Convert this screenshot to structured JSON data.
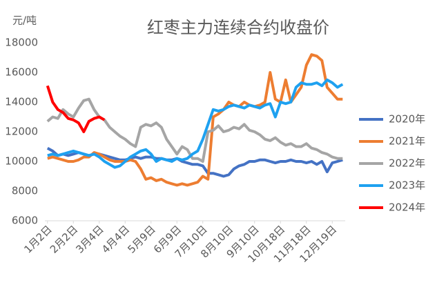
{
  "chart_data": {
    "type": "line",
    "title": "红枣主力连续合约收盘价",
    "y_label": "元/吨",
    "categories": [
      "1月2日",
      null,
      null,
      null,
      null,
      "2月2日",
      null,
      null,
      null,
      null,
      "3月4日",
      null,
      null,
      null,
      null,
      "4月4日",
      null,
      null,
      null,
      null,
      "5月9日",
      null,
      null,
      null,
      null,
      "6月9日",
      null,
      null,
      null,
      null,
      "7月10日",
      null,
      null,
      null,
      null,
      "8月10日",
      null,
      null,
      null,
      null,
      "9月10日",
      null,
      null,
      null,
      null,
      "10月18日",
      null,
      null,
      null,
      null,
      "11月18日",
      null,
      null,
      null,
      null,
      "12月19日",
      null,
      null
    ],
    "series": [
      {
        "name": "2020年",
        "color": "#4472c4",
        "values": [
          10900,
          10700,
          10400,
          10500,
          10400,
          10500,
          10600,
          10500,
          10400,
          10500,
          10500,
          10400,
          10300,
          10200,
          10100,
          10100,
          10200,
          10300,
          10200,
          10300,
          10300,
          10200,
          10200,
          10100,
          10100,
          10200,
          10000,
          9900,
          9800,
          9800,
          9700,
          9200,
          9200,
          9100,
          9000,
          9100,
          9500,
          9700,
          9800,
          10000,
          10000,
          10100,
          10100,
          10000,
          9900,
          10000,
          10000,
          10100,
          10000,
          10000,
          9900,
          10000,
          9800,
          10000,
          9300,
          9900,
          10000,
          10100
        ]
      },
      {
        "name": "2021年",
        "color": "#ed7d31",
        "values": [
          10200,
          10300,
          10200,
          10100,
          10000,
          10000,
          10100,
          10300,
          10300,
          10600,
          10500,
          10300,
          10100,
          10000,
          10000,
          10000,
          10100,
          10000,
          9500,
          8800,
          8900,
          8700,
          8800,
          8600,
          8500,
          8400,
          8500,
          8400,
          8500,
          8600,
          9000,
          8800,
          13000,
          13200,
          13500,
          14000,
          13800,
          13700,
          14000,
          13800,
          13700,
          13800,
          14000,
          16000,
          14200,
          14000,
          15500,
          14000,
          14500,
          15000,
          16500,
          17200,
          17100,
          16800,
          15000,
          14600,
          14200,
          14200
        ]
      },
      {
        "name": "2022年",
        "color": "#a5a5a5",
        "values": [
          12700,
          13000,
          12900,
          13500,
          13200,
          13000,
          13600,
          14100,
          14200,
          13500,
          13000,
          12800,
          12300,
          12000,
          11700,
          11500,
          11200,
          11000,
          12300,
          12500,
          12400,
          12600,
          12300,
          11500,
          11000,
          10500,
          11000,
          10800,
          10200,
          10200,
          10000,
          12000,
          12100,
          12400,
          12000,
          12100,
          12300,
          12200,
          12500,
          12100,
          12000,
          11800,
          11500,
          11400,
          11600,
          11300,
          11100,
          11200,
          11000,
          11000,
          11200,
          10900,
          10800,
          10600,
          10500,
          10300,
          10200,
          10200
        ]
      },
      {
        "name": "2023年",
        "color": "#1ea1f0",
        "values": [
          10400,
          10500,
          10400,
          10500,
          10600,
          10700,
          10600,
          10500,
          10400,
          10500,
          10300,
          10000,
          9800,
          9600,
          9700,
          10000,
          10300,
          10500,
          10700,
          10800,
          10500,
          10000,
          10200,
          10100,
          10000,
          10200,
          10100,
          10200,
          10500,
          10700,
          11500,
          12500,
          13500,
          13400,
          13500,
          13700,
          13800,
          13700,
          13600,
          13800,
          13700,
          13600,
          13800,
          13900,
          13000,
          14000,
          13900,
          14000,
          15000,
          15300,
          15200,
          15200,
          15300,
          15100,
          15500,
          15300,
          15000,
          15200
        ]
      },
      {
        "name": "2024年",
        "color": "#ff0000",
        "values": [
          15100,
          14000,
          13500,
          13300,
          12900,
          12800,
          12600,
          12000,
          12700,
          12900,
          13000,
          12800,
          null,
          null,
          null,
          null,
          null,
          null,
          null,
          null,
          null,
          null,
          null,
          null,
          null,
          null,
          null,
          null,
          null,
          null,
          null,
          null,
          null,
          null,
          null,
          null,
          null,
          null,
          null,
          null,
          null,
          null,
          null,
          null,
          null,
          null,
          null,
          null,
          null,
          null,
          null,
          null,
          null,
          null,
          null,
          null,
          null,
          null
        ]
      }
    ],
    "ylim": [
      6000,
      18000
    ],
    "yticks": [
      6000,
      8000,
      10000,
      12000,
      14000,
      16000,
      18000
    ],
    "grid": false,
    "legend": "right"
  }
}
